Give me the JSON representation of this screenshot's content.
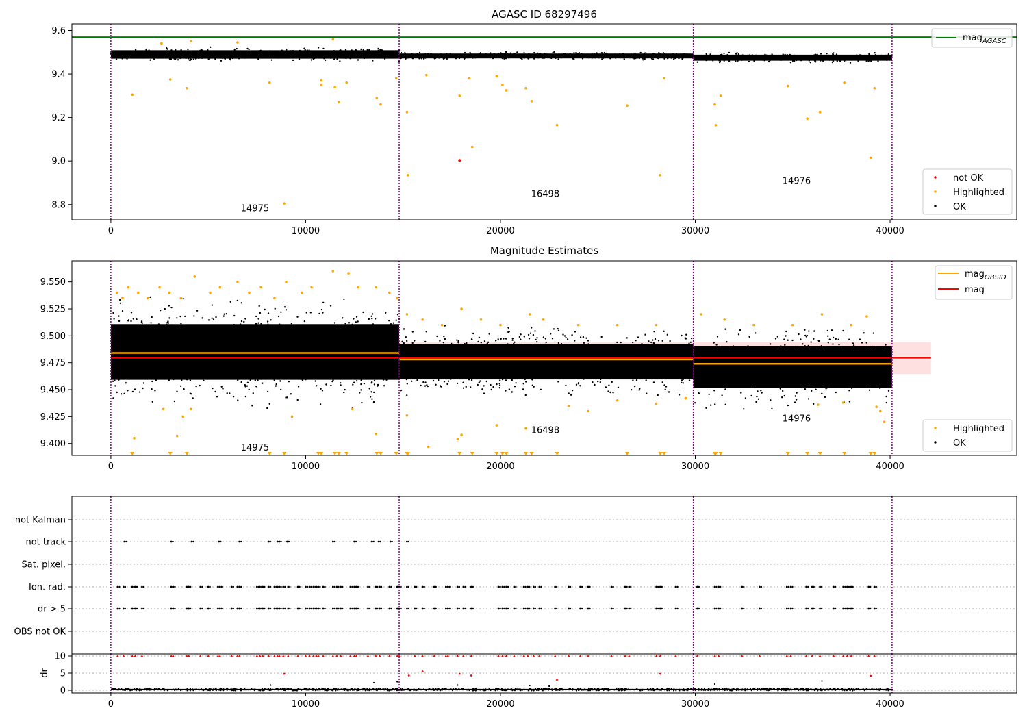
{
  "chart_data": [
    {
      "type": "scatter",
      "title": "AGASC ID 68297496",
      "xlim": [
        -2000,
        46500
      ],
      "ylim": [
        8.73,
        9.63
      ],
      "xticks": [
        0,
        10000,
        20000,
        30000,
        40000
      ],
      "yticks": [
        8.8,
        9.0,
        9.2,
        9.4,
        9.6
      ],
      "ytick_labels": [
        "8.8",
        "9.0",
        "9.2",
        "9.4",
        "9.6"
      ],
      "obsid_boundaries": [
        0,
        14800,
        29900,
        40100
      ],
      "reference_line": {
        "name_base": "mag",
        "name_sub": "AGASC",
        "y": 9.57,
        "x_range": [
          -2000,
          46500
        ],
        "color": "#008000"
      },
      "ok_bands": [
        {
          "x": [
            0,
            14800
          ],
          "center": 9.49,
          "halfwidth": 0.035
        },
        {
          "x": [
            14800,
            29900
          ],
          "center": 9.483,
          "halfwidth": 0.02
        },
        {
          "x": [
            29900,
            40100
          ],
          "center": 9.475,
          "halfwidth": 0.025
        }
      ],
      "highlighted_points": [
        [
          1100,
          9.305
        ],
        [
          3050,
          9.375
        ],
        [
          3900,
          9.335
        ],
        [
          8150,
          9.36
        ],
        [
          8900,
          8.805
        ],
        [
          10800,
          9.37
        ],
        [
          10800,
          9.35
        ],
        [
          11500,
          9.34
        ],
        [
          11700,
          9.27
        ],
        [
          12100,
          9.36
        ],
        [
          13650,
          9.29
        ],
        [
          13850,
          9.26
        ],
        [
          14650,
          9.38
        ],
        [
          15200,
          9.225
        ],
        [
          15250,
          8.935
        ],
        [
          17900,
          9.3
        ],
        [
          18400,
          9.38
        ],
        [
          18550,
          9.065
        ],
        [
          19800,
          9.39
        ],
        [
          20100,
          9.35
        ],
        [
          20300,
          9.325
        ],
        [
          21300,
          9.335
        ],
        [
          21600,
          9.275
        ],
        [
          22900,
          9.165
        ],
        [
          26500,
          9.255
        ],
        [
          28200,
          8.935
        ],
        [
          28400,
          9.38
        ],
        [
          31000,
          9.26
        ],
        [
          31050,
          9.165
        ],
        [
          31300,
          9.3
        ],
        [
          34750,
          9.345
        ],
        [
          35750,
          9.195
        ],
        [
          36400,
          9.225
        ],
        [
          37650,
          9.36
        ],
        [
          39000,
          9.015
        ],
        [
          39200,
          9.335
        ],
        [
          11400,
          9.56
        ],
        [
          6500,
          9.545
        ],
        [
          2600,
          9.54
        ],
        [
          16200,
          9.395
        ],
        [
          4100,
          9.55
        ]
      ],
      "not_ok_points": [
        [
          17900,
          9.003
        ]
      ],
      "obsid_labels": [
        {
          "text": "14975",
          "x": 7400,
          "y": 8.77
        },
        {
          "text": "16498",
          "x": 22300,
          "y": 8.835
        },
        {
          "text": "14976",
          "x": 35200,
          "y": 8.895
        }
      ],
      "legend": [
        {
          "label_base": "mag",
          "label_sub": "AGASC",
          "kind": "line",
          "color": "#008000",
          "position": "top-right"
        },
        {
          "label": "not OK",
          "kind": "dot",
          "color": "#ff0000",
          "position": "bottom-right"
        },
        {
          "label": "Highlighted",
          "kind": "dot",
          "color": "#ffa500",
          "position": "bottom-right"
        },
        {
          "label": "OK",
          "kind": "dot",
          "color": "#000000",
          "position": "bottom-right"
        }
      ]
    },
    {
      "type": "scatter",
      "title": "Magnitude Estimates",
      "xlim": [
        -2000,
        46500
      ],
      "ylim": [
        9.389,
        9.5695
      ],
      "xticks": [
        0,
        10000,
        20000,
        30000,
        40000
      ],
      "yticks": [
        9.4,
        9.425,
        9.45,
        9.475,
        9.5,
        9.525,
        9.55
      ],
      "ytick_labels": [
        "9.400",
        "9.425",
        "9.450",
        "9.475",
        "9.500",
        "9.525",
        "9.550"
      ],
      "obsid_boundaries": [
        0,
        14800,
        29900,
        40100
      ],
      "mag_line": {
        "y": 9.4795,
        "x_range": [
          0,
          42100
        ],
        "color": "#ff0000"
      },
      "mag_band": {
        "y": [
          9.4645,
          9.4945
        ],
        "x_range": [
          0,
          42100
        ],
        "color": "#ffcccc"
      },
      "obsid_mags": [
        {
          "x": [
            0,
            14800
          ],
          "y": 9.484
        },
        {
          "x": [
            14800,
            29900
          ],
          "y": 9.478
        },
        {
          "x": [
            29900,
            40100
          ],
          "y": 9.474
        }
      ],
      "ok_bands": [
        {
          "x": [
            0,
            14800
          ],
          "center": 9.485,
          "halfwidth": 0.047
        },
        {
          "x": [
            14800,
            29900
          ],
          "center": 9.476,
          "halfwidth": 0.03
        },
        {
          "x": [
            29900,
            40100
          ],
          "center": 9.471,
          "halfwidth": 0.035
        }
      ],
      "highlighted_points": [
        [
          300,
          9.54
        ],
        [
          600,
          9.535
        ],
        [
          900,
          9.545
        ],
        [
          1400,
          9.54
        ],
        [
          1900,
          9.535
        ],
        [
          2500,
          9.545
        ],
        [
          3000,
          9.54
        ],
        [
          3600,
          9.535
        ],
        [
          4300,
          9.555
        ],
        [
          5100,
          9.54
        ],
        [
          5600,
          9.545
        ],
        [
          6500,
          9.55
        ],
        [
          7100,
          9.54
        ],
        [
          7700,
          9.545
        ],
        [
          8400,
          9.535
        ],
        [
          9000,
          9.55
        ],
        [
          9800,
          9.54
        ],
        [
          10300,
          9.545
        ],
        [
          11400,
          9.56
        ],
        [
          12200,
          9.558
        ],
        [
          12700,
          9.545
        ],
        [
          13600,
          9.545
        ],
        [
          14300,
          9.54
        ],
        [
          14700,
          9.535
        ],
        [
          15200,
          9.52
        ],
        [
          16000,
          9.515
        ],
        [
          17000,
          9.51
        ],
        [
          18000,
          9.525
        ],
        [
          19000,
          9.515
        ],
        [
          20000,
          9.51
        ],
        [
          21500,
          9.52
        ],
        [
          22200,
          9.515
        ],
        [
          24000,
          9.51
        ],
        [
          26000,
          9.51
        ],
        [
          28000,
          9.51
        ],
        [
          30300,
          9.52
        ],
        [
          31500,
          9.515
        ],
        [
          33000,
          9.51
        ],
        [
          35000,
          9.51
        ],
        [
          36500,
          9.52
        ],
        [
          38000,
          9.51
        ],
        [
          38800,
          9.518
        ],
        [
          1200,
          9.405
        ],
        [
          3400,
          9.407
        ],
        [
          3700,
          9.425
        ],
        [
          9300,
          9.425
        ],
        [
          13600,
          9.409
        ],
        [
          15200,
          9.426
        ],
        [
          16300,
          9.397
        ],
        [
          17800,
          9.404
        ],
        [
          18000,
          9.408
        ],
        [
          19800,
          9.417
        ],
        [
          21300,
          9.414
        ],
        [
          2700,
          9.432
        ],
        [
          4100,
          9.432
        ],
        [
          12400,
          9.432
        ],
        [
          23500,
          9.435
        ],
        [
          24500,
          9.43
        ],
        [
          26000,
          9.44
        ],
        [
          28000,
          9.437
        ],
        [
          29500,
          9.442
        ],
        [
          36300,
          9.436
        ],
        [
          37600,
          9.438
        ],
        [
          39300,
          9.434
        ],
        [
          39500,
          9.43
        ],
        [
          39700,
          9.42
        ]
      ],
      "off_scale_markers": [
        1100,
        3050,
        3900,
        8150,
        8900,
        10650,
        10800,
        11500,
        11700,
        12100,
        13650,
        13850,
        14650,
        15200,
        15250,
        17900,
        18550,
        19800,
        20100,
        20300,
        21300,
        21600,
        22900,
        26500,
        28200,
        28400,
        31000,
        31050,
        31300,
        34750,
        35750,
        36400,
        37650,
        39000,
        39200
      ],
      "obsid_labels": [
        {
          "text": "14975",
          "x": 7400,
          "y": 9.3935
        },
        {
          "text": "16498",
          "x": 22300,
          "y": 9.4095
        },
        {
          "text": "14976",
          "x": 35200,
          "y": 9.4205
        }
      ],
      "legend": [
        {
          "label_base": "mag",
          "label_sub": "OBSID",
          "kind": "line",
          "color": "#ffa500",
          "position": "top-right"
        },
        {
          "label": "mag",
          "kind": "line",
          "color": "#ff0000",
          "position": "top-right"
        },
        {
          "label": "Highlighted",
          "kind": "dot",
          "color": "#ffa500",
          "position": "bottom-right"
        },
        {
          "label": "OK",
          "kind": "dot",
          "color": "#000000",
          "position": "bottom-right"
        }
      ]
    },
    {
      "type": "scatter",
      "title": "",
      "xlim": [
        -2000,
        46500
      ],
      "xticks": [
        0,
        10000,
        20000,
        30000,
        40000
      ],
      "obsid_boundaries": [
        0,
        14800,
        29900,
        40100
      ],
      "flag_rows": [
        "not Kalman",
        "not track",
        "Sat. pixel.",
        "Ion. rad.",
        "dr > 5",
        "OBS not OK"
      ],
      "flag_points": {
        "not track": [
          700,
          3100,
          4150,
          5550,
          6600,
          8100,
          8550,
          8650,
          9050,
          11400,
          12500,
          13400,
          13750,
          14350,
          15200
        ],
        "Ion. rad.": [
          350,
          650,
          1100,
          1250,
          1600,
          3100,
          3200,
          3900,
          4000,
          4600,
          5000,
          5500,
          5600,
          6200,
          6500,
          6600,
          7500,
          7650,
          7800,
          8100,
          8400,
          8550,
          8650,
          8850,
          9100,
          9600,
          10000,
          10200,
          10400,
          10550,
          10650,
          10900,
          11400,
          11600,
          11800,
          12300,
          12500,
          12600,
          13200,
          13600,
          13800,
          14300,
          14700,
          14800,
          15200,
          15600,
          16000,
          16600,
          17200,
          17300,
          17800,
          18100,
          18500,
          19900,
          20100,
          20300,
          20700,
          21200,
          21400,
          21700,
          22000,
          22800,
          23500,
          24100,
          24500,
          25700,
          26400,
          26600,
          28000,
          28200,
          29000,
          30100,
          31000,
          31200,
          32400,
          33300,
          34700,
          34900,
          35700,
          36000,
          36400,
          37100,
          37600,
          37800,
          38000,
          38900,
          39200
        ],
        "dr > 5": [
          350,
          650,
          1100,
          1250,
          1600,
          3100,
          3200,
          3900,
          4000,
          4600,
          5000,
          5500,
          5600,
          6200,
          6500,
          6600,
          7500,
          7650,
          7800,
          8100,
          8400,
          8550,
          8650,
          8850,
          9100,
          9600,
          10000,
          10200,
          10400,
          10550,
          10650,
          10900,
          11400,
          11600,
          11800,
          12300,
          12500,
          12600,
          13200,
          13600,
          13800,
          14300,
          14700,
          14800,
          15200,
          15600,
          16000,
          16600,
          17200,
          17300,
          17800,
          18100,
          18500,
          19900,
          20100,
          20300,
          20700,
          21200,
          21400,
          21700,
          22000,
          22800,
          23500,
          24100,
          24500,
          25700,
          26400,
          26600,
          28000,
          28200,
          29000,
          30100,
          31000,
          31200,
          32400,
          33300,
          34700,
          34900,
          35700,
          36000,
          36400,
          37100,
          37600,
          37800,
          38000,
          38900,
          39200
        ]
      }
    },
    {
      "type": "scatter",
      "title": "",
      "ylabel": "dr",
      "xlim": [
        -2000,
        46500
      ],
      "ylim": [
        -0.8,
        10.6
      ],
      "xticks": [
        0,
        10000,
        20000,
        30000,
        40000
      ],
      "xtick_labels": [
        "0",
        "10000",
        "20000",
        "30000",
        "40000"
      ],
      "yticks": [
        0,
        5,
        10
      ],
      "ytick_labels": [
        "0",
        "5",
        "10"
      ],
      "obsid_boundaries": [
        0,
        14800,
        29900,
        40100
      ],
      "ok_band": {
        "x": [
          0,
          40100
        ],
        "center": 0.25,
        "halfwidth": 0.35
      },
      "ok_outliers": [
        [
          8200,
          1.5
        ],
        [
          13500,
          2.2
        ],
        [
          14700,
          2.5
        ],
        [
          17800,
          1.5
        ],
        [
          21500,
          1.4
        ],
        [
          31000,
          1.8
        ],
        [
          36500,
          2.7
        ],
        [
          22500,
          1.2
        ]
      ],
      "clipped_points": [
        350,
        650,
        1100,
        1250,
        1600,
        3100,
        3200,
        3900,
        4000,
        4600,
        5000,
        5500,
        5600,
        6200,
        6500,
        6600,
        7500,
        7650,
        7800,
        8100,
        8400,
        8550,
        8650,
        8850,
        9100,
        9600,
        10000,
        10200,
        10400,
        10550,
        10650,
        10900,
        11400,
        11600,
        11800,
        12300,
        12500,
        12600,
        13200,
        13600,
        13800,
        14300,
        14700,
        14800,
        15600,
        16000,
        16600,
        17200,
        17300,
        17800,
        18100,
        18500,
        19900,
        20100,
        20300,
        20700,
        21200,
        21400,
        21700,
        22000,
        22800,
        23500,
        24100,
        24500,
        25700,
        26400,
        26600,
        28000,
        28200,
        29000,
        30100,
        31000,
        31200,
        32400,
        33300,
        34700,
        34900,
        35700,
        36000,
        36400,
        37100,
        37600,
        37800,
        38000,
        38900,
        39200
      ],
      "red_points": [
        [
          8900,
          4.8
        ],
        [
          15300,
          4.3
        ],
        [
          16000,
          5.5
        ],
        [
          17900,
          4.8
        ],
        [
          18500,
          4.3
        ],
        [
          22900,
          3.0
        ],
        [
          28200,
          4.8
        ],
        [
          39000,
          4.2
        ]
      ]
    }
  ]
}
